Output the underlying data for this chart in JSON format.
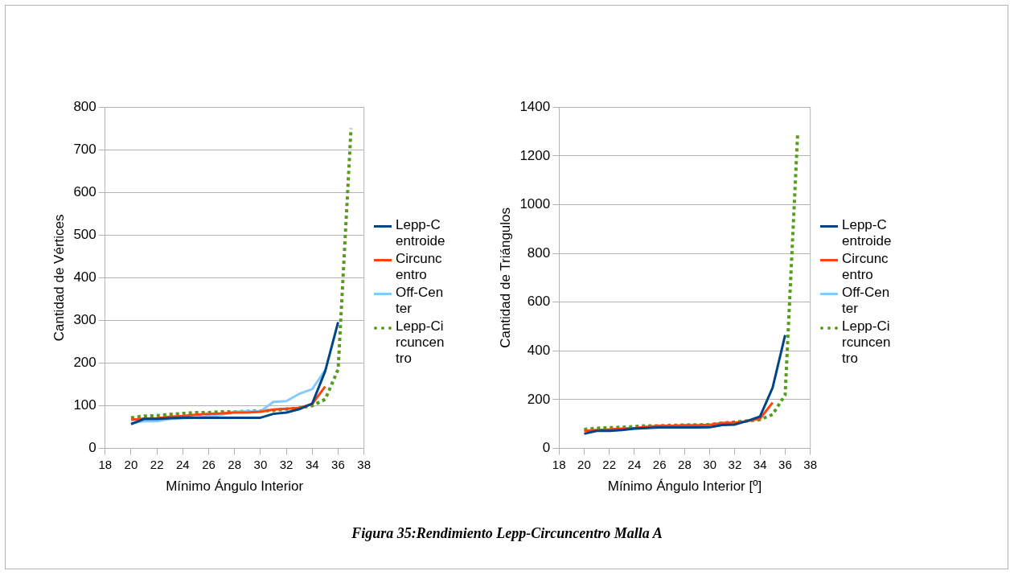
{
  "chart_data": [
    {
      "type": "line",
      "xlabel": "Mínimo Ángulo Interior",
      "ylabel": "Cantidad de Vértices",
      "xlim": [
        18,
        38
      ],
      "xticks": [
        18,
        20,
        22,
        24,
        26,
        28,
        30,
        32,
        34,
        36,
        38
      ],
      "ylim": [
        0,
        800
      ],
      "yticks": [
        0,
        100,
        200,
        300,
        400,
        500,
        600,
        700,
        800
      ],
      "grid": "y",
      "legend": "right",
      "marker": "none",
      "series": [
        {
          "name": "Lepp-Centroide",
          "color": "#004586",
          "x": [
            20,
            21,
            22,
            23,
            24,
            25,
            26,
            27,
            28,
            29,
            30,
            31,
            32,
            33,
            34,
            35,
            36
          ],
          "values": [
            57,
            69,
            69,
            71,
            72,
            72,
            72,
            72,
            72,
            72,
            72,
            81,
            84,
            92,
            105,
            181,
            296
          ]
        },
        {
          "name": "Circuncentro",
          "color": "#ff420e",
          "x": [
            20,
            21,
            22,
            23,
            24,
            25,
            26,
            27,
            28,
            29,
            30,
            31,
            32,
            33,
            34,
            35
          ],
          "values": [
            67,
            70,
            71,
            74,
            76,
            79,
            81,
            82,
            84,
            84,
            86,
            91,
            93,
            95,
            104,
            145
          ]
        },
        {
          "name": "Off-Center",
          "color": "#83caff",
          "x": [
            20,
            21,
            22,
            23,
            24,
            25,
            26,
            27,
            28,
            29,
            30,
            31,
            32,
            33,
            34,
            35
          ],
          "values": [
            59,
            64,
            64,
            69,
            71,
            72,
            76,
            79,
            86,
            87,
            87,
            109,
            111,
            128,
            139,
            184
          ]
        },
        {
          "name": "Lepp-Circuncentro",
          "color": "#579d1c",
          "line_style": "dotted",
          "x": [
            20,
            21,
            22,
            23,
            24,
            25,
            26,
            27,
            28,
            29,
            30,
            31,
            32,
            33,
            34,
            35,
            36,
            37
          ],
          "values": [
            72,
            76,
            77,
            80,
            82,
            84,
            84,
            86,
            86,
            87,
            88,
            89,
            92,
            95,
            100,
            115,
            185,
            750
          ]
        }
      ]
    },
    {
      "type": "line",
      "xlabel": "Mínimo Ángulo Interior [º]",
      "ylabel": "Cantidad de Triángulos",
      "xlim": [
        18,
        38
      ],
      "xticks": [
        18,
        20,
        22,
        24,
        26,
        28,
        30,
        32,
        34,
        36,
        38
      ],
      "ylim": [
        0,
        1400
      ],
      "yticks": [
        0,
        200,
        400,
        600,
        800,
        1000,
        1200,
        1400
      ],
      "grid": "y",
      "legend": "right",
      "marker": "none",
      "annotations": [
        "Figura 35:Rendimiento Lepp-Circuncentro Malla A"
      ],
      "series": [
        {
          "name": "Lepp-Centroide",
          "color": "#004586",
          "x": [
            20,
            21,
            22,
            23,
            24,
            25,
            26,
            27,
            28,
            29,
            30,
            31,
            32,
            33,
            34,
            35,
            36
          ],
          "values": [
            60,
            72,
            72,
            75,
            81,
            84,
            86,
            86,
            86,
            86,
            87,
            96,
            98,
            113,
            131,
            249,
            465
          ]
        },
        {
          "name": "Circuncentro",
          "color": "#ff420e",
          "x": [
            20,
            21,
            22,
            23,
            24,
            25,
            26,
            27,
            28,
            29,
            30,
            31,
            32,
            33,
            34,
            35
          ],
          "values": [
            72,
            75,
            78,
            81,
            84,
            89,
            93,
            93,
            95,
            95,
            97,
            104,
            106,
            112,
            122,
            188
          ]
        },
        {
          "name": "Off-Center",
          "color": "#83caff"
        },
        {
          "name": "Lepp-Circuncentro",
          "color": "#579d1c",
          "line_style": "dotted",
          "x": [
            20,
            21,
            22,
            23,
            24,
            25,
            26,
            27,
            28,
            29,
            30,
            31,
            32,
            33,
            34,
            35,
            36,
            37
          ],
          "values": [
            78,
            83,
            85,
            87,
            90,
            93,
            93,
            95,
            96,
            97,
            98,
            104,
            108,
            113,
            118,
            139,
            220,
            1296
          ]
        }
      ]
    }
  ]
}
